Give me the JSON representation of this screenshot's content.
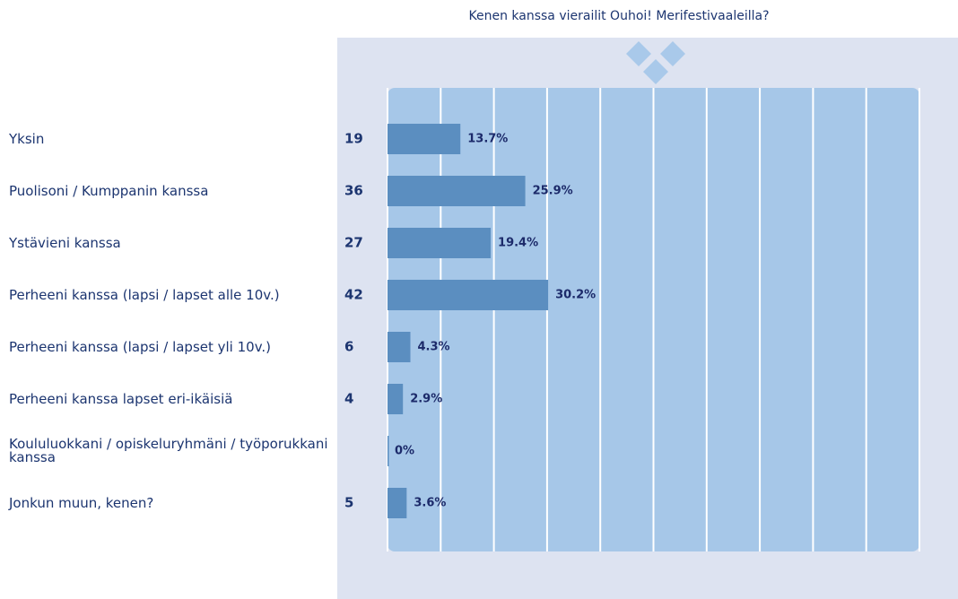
{
  "chart_data": {
    "type": "bar",
    "orientation": "horizontal",
    "title": "Kenen kanssa vierailit Ouhoi! Merifestivaaleilla?",
    "categories": [
      "Yksin",
      "Puolisoni / Kumppanin kanssa",
      "Ystävieni kanssa",
      "Perheeni kanssa (lapsi / lapset alle 10v.)",
      "Perheeni kanssa (lapsi / lapset yli 10v.)",
      "Perheeni kanssa lapset eri-ikäisiä",
      "Koululuokkani / opiskeluryhmäni / työporukkani kanssa",
      "Jonkun muun, kenen?"
    ],
    "counts": [
      19,
      36,
      27,
      42,
      6,
      4,
      null,
      5
    ],
    "values": [
      13.7,
      25.9,
      19.4,
      30.2,
      4.3,
      2.9,
      0,
      3.6
    ],
    "value_labels": [
      "13.7%",
      "25.9%",
      "19.4%",
      "30.2%",
      "4.3%",
      "2.9%",
      "0%",
      "3.6%"
    ],
    "color": "#5b8ec0",
    "xlim": [
      0,
      100
    ],
    "xticks": [
      0,
      10,
      20,
      30,
      40,
      50,
      60,
      70,
      80,
      90,
      100
    ],
    "grid": true
  }
}
